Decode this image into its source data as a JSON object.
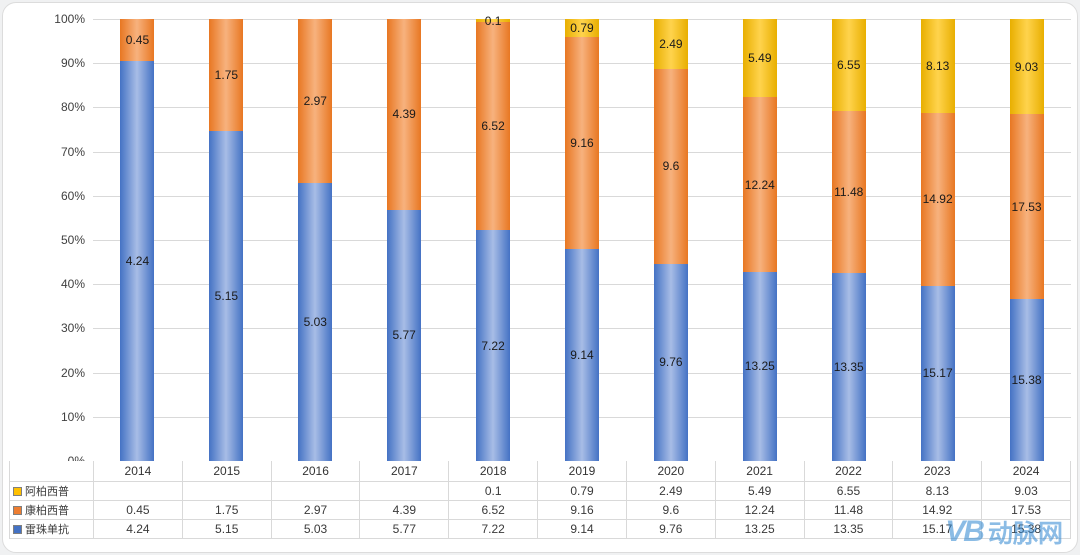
{
  "chart_data": {
    "type": "bar",
    "stacked": true,
    "percent_stacked": true,
    "title": "",
    "xlabel": "",
    "ylabel": "",
    "ylim": [
      0,
      100
    ],
    "grid": true,
    "legend_position": "table-left",
    "categories": [
      "2014",
      "2015",
      "2016",
      "2017",
      "2018",
      "2019",
      "2020",
      "2021",
      "2022",
      "2023",
      "2024"
    ],
    "y_ticks": [
      "100%",
      "90%",
      "80%",
      "70%",
      "60%",
      "50%",
      "40%",
      "30%",
      "20%",
      "10%",
      "0%"
    ],
    "series": [
      {
        "name": "阿柏西普",
        "color": "#E8AF00",
        "color_mid": "#FFD34D",
        "key_color": "#FFC000",
        "values": [
          null,
          null,
          null,
          null,
          0.1,
          0.79,
          2.49,
          5.49,
          6.55,
          8.13,
          9.03
        ],
        "labels": [
          "",
          "",
          "",
          "",
          "0.1",
          "0.79",
          "2.49",
          "5.49",
          "6.55",
          "8.13",
          "9.03"
        ]
      },
      {
        "name": "康柏西普",
        "color": "#E87722",
        "color_mid": "#F7B27E",
        "key_color": "#ED7D31",
        "values": [
          0.45,
          1.75,
          2.97,
          4.39,
          6.52,
          9.16,
          9.6,
          12.24,
          11.48,
          14.92,
          17.53
        ],
        "labels": [
          "0.45",
          "1.75",
          "2.97",
          "4.39",
          "6.52",
          "9.16",
          "9.6",
          "12.24",
          "11.48",
          "14.92",
          "17.53"
        ]
      },
      {
        "name": "雷珠单抗",
        "color": "#4472C4",
        "color_mid": "#A8BDE6",
        "key_color": "#4472C4",
        "values": [
          4.24,
          5.15,
          5.03,
          5.77,
          7.22,
          9.14,
          9.76,
          13.25,
          13.35,
          15.17,
          15.38
        ],
        "labels": [
          "4.24",
          "5.15",
          "5.03",
          "5.77",
          "7.22",
          "9.14",
          "9.76",
          "13.25",
          "13.35",
          "15.17",
          "15.38"
        ]
      }
    ]
  },
  "watermark": {
    "logo": "VB",
    "text": "动脉网"
  }
}
